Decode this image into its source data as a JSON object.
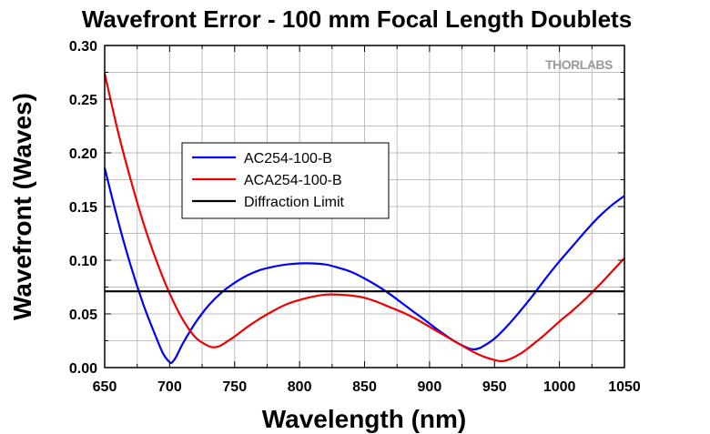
{
  "chart_data": {
    "type": "line",
    "title": "Wavefront Error - 100 mm Focal Length Doublets",
    "xlabel": "Wavelength (nm)",
    "ylabel": "Wavefront (Waves)",
    "xlim": [
      650,
      1050
    ],
    "ylim": [
      0,
      0.3
    ],
    "xticks": [
      "650",
      "700",
      "750",
      "800",
      "850",
      "900",
      "950",
      "1000",
      "1050"
    ],
    "yticks": [
      "0.00",
      "0.05",
      "0.10",
      "0.15",
      "0.20",
      "0.25",
      "0.30"
    ],
    "grid": true,
    "legend_position": "upper-left",
    "watermark": "THORLABS",
    "series": [
      {
        "name": "AC254-100-B",
        "color": "#0000ff",
        "x": [
          650,
          660,
          670,
          680,
          690,
          695,
          700,
          702,
          705,
          710,
          720,
          730,
          740,
          750,
          760,
          770,
          780,
          790,
          800,
          810,
          820,
          830,
          840,
          850,
          860,
          870,
          880,
          890,
          900,
          910,
          920,
          930,
          935,
          940,
          950,
          960,
          970,
          980,
          990,
          1000,
          1010,
          1020,
          1030,
          1040,
          1050
        ],
        "y": [
          0.186,
          0.138,
          0.095,
          0.058,
          0.027,
          0.013,
          0.005,
          0.005,
          0.01,
          0.022,
          0.042,
          0.058,
          0.07,
          0.079,
          0.086,
          0.091,
          0.094,
          0.096,
          0.097,
          0.097,
          0.096,
          0.093,
          0.089,
          0.083,
          0.076,
          0.068,
          0.059,
          0.05,
          0.041,
          0.032,
          0.024,
          0.018,
          0.017,
          0.019,
          0.027,
          0.039,
          0.053,
          0.068,
          0.084,
          0.099,
          0.113,
          0.127,
          0.14,
          0.151,
          0.16
        ]
      },
      {
        "name": "ACA254-100-B",
        "color": "#ee0000",
        "x": [
          650,
          660,
          670,
          680,
          690,
          700,
          710,
          720,
          730,
          735,
          740,
          750,
          760,
          770,
          780,
          790,
          800,
          810,
          820,
          830,
          840,
          850,
          860,
          870,
          880,
          890,
          900,
          910,
          920,
          930,
          940,
          950,
          955,
          960,
          970,
          980,
          990,
          1000,
          1010,
          1020,
          1030,
          1040,
          1050
        ],
        "y": [
          0.274,
          0.221,
          0.175,
          0.134,
          0.099,
          0.069,
          0.045,
          0.028,
          0.02,
          0.019,
          0.021,
          0.029,
          0.038,
          0.046,
          0.053,
          0.059,
          0.063,
          0.066,
          0.068,
          0.068,
          0.067,
          0.065,
          0.061,
          0.056,
          0.051,
          0.045,
          0.038,
          0.031,
          0.024,
          0.017,
          0.011,
          0.007,
          0.006,
          0.007,
          0.013,
          0.022,
          0.032,
          0.043,
          0.053,
          0.064,
          0.076,
          0.089,
          0.102
        ]
      },
      {
        "name": "Diffraction Limit",
        "color": "#000000",
        "x": [
          650,
          1050
        ],
        "y": [
          0.071,
          0.071
        ]
      }
    ]
  }
}
